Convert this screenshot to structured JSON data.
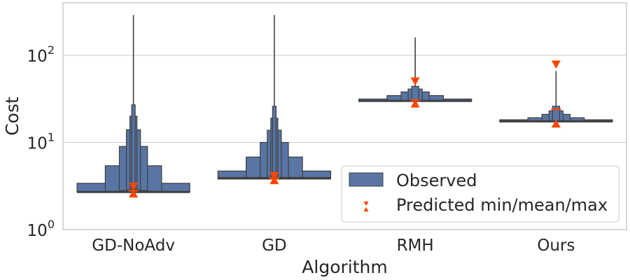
{
  "chart_data": {
    "type": "boxen",
    "xlabel": "Algorithm",
    "ylabel": "Cost",
    "yscale": "log",
    "ylim": [
      1,
      400
    ],
    "y_ticks": [
      {
        "value": 1,
        "base": "10",
        "exp": "0"
      },
      {
        "value": 10,
        "base": "10",
        "exp": "1"
      },
      {
        "value": 100,
        "base": "10",
        "exp": "2"
      }
    ],
    "grid": "horizontal",
    "legend_position": "lower-right",
    "colors": {
      "box_fill": "#5875a4",
      "box_edge": "#3f3f3f",
      "median": "#3f3f3f",
      "predicted": "#ff4500",
      "grid": "#cccccc",
      "axes": "#bfbfbf"
    },
    "legend": [
      {
        "label": "Observed",
        "kind": "box"
      },
      {
        "label": "Predicted min/mean/max",
        "kind": "triangles"
      }
    ],
    "categories": [
      "GD-NoAdv",
      "GD",
      "RMH",
      "Ours"
    ],
    "series": [
      {
        "category": "GD-NoAdv",
        "median": 2.7,
        "boxes": [
          [
            2.7,
            3.4
          ],
          [
            2.75,
            5.4
          ],
          [
            2.8,
            9.0
          ],
          [
            2.85,
            14.0
          ],
          [
            2.9,
            20.0
          ],
          [
            2.95,
            27.0
          ]
        ],
        "whisker": [
          27.0,
          290.0
        ],
        "predicted": {
          "min": 2.6,
          "mean": 2.8,
          "max": 3.1
        }
      },
      {
        "category": "GD",
        "median": 3.9,
        "boxes": [
          [
            3.8,
            4.7
          ],
          [
            3.85,
            6.8
          ],
          [
            3.9,
            10.0
          ],
          [
            3.95,
            13.8
          ],
          [
            4.0,
            19.0
          ],
          [
            4.05,
            26.0
          ]
        ],
        "whisker": [
          26.0,
          290.0
        ],
        "predicted": {
          "min": 3.7,
          "mean": 3.9,
          "max": 4.1
        }
      },
      {
        "category": "RMH",
        "median": 30.0,
        "boxes": [
          [
            29.5,
            31.5
          ],
          [
            29.7,
            34.5
          ],
          [
            29.9,
            38.0
          ],
          [
            30.1,
            41.0
          ],
          [
            30.3,
            44.0
          ]
        ],
        "whisker": [
          44.0,
          160.0
        ],
        "predicted": {
          "min": 28.0,
          "mean": 30.5,
          "max": 50.0
        }
      },
      {
        "category": "Ours",
        "median": 17.5,
        "boxes": [
          [
            17.2,
            18.2
          ],
          [
            17.3,
            19.2
          ],
          [
            17.4,
            21.0
          ],
          [
            17.5,
            23.0
          ],
          [
            17.6,
            26.0
          ]
        ],
        "whisker": [
          26.0,
          66.0
        ],
        "predicted": {
          "min": 16.5,
          "mean": 24.0,
          "max": 78.0
        }
      }
    ]
  }
}
